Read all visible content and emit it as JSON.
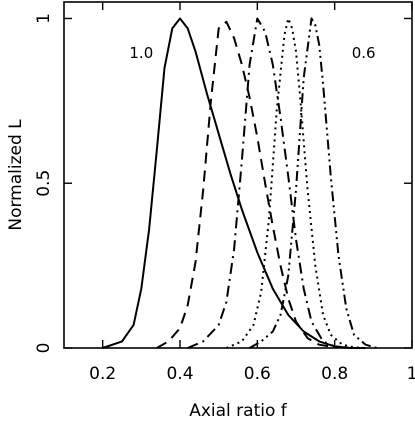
{
  "chart_data": {
    "type": "line",
    "title": "",
    "xlabel": "Axial ratio f",
    "ylabel": "Normalized L",
    "xlim": [
      0.1,
      1.0
    ],
    "ylim": [
      0,
      1.05
    ],
    "xticks": [
      0.2,
      0.4,
      0.6,
      0.8,
      1
    ],
    "xtick_labels": [
      "0.2",
      "0.4",
      "0.6",
      "0.8",
      "1"
    ],
    "yticks": [
      0,
      0.5,
      1
    ],
    "ytick_labels": [
      "0",
      "0.5",
      "1"
    ],
    "grid": false,
    "annotations": [
      {
        "text": "1.0",
        "x": 0.3,
        "y": 0.88
      },
      {
        "text": "0.6",
        "x": 0.875,
        "y": 0.88
      }
    ],
    "series": [
      {
        "style": "solid",
        "x": [
          0.2,
          0.25,
          0.28,
          0.3,
          0.32,
          0.34,
          0.36,
          0.38,
          0.4,
          0.42,
          0.44,
          0.47,
          0.5,
          0.53,
          0.56,
          0.6,
          0.64,
          0.68,
          0.72,
          0.76,
          0.8,
          0.84,
          0.88
        ],
        "y": [
          0.0,
          0.02,
          0.07,
          0.18,
          0.36,
          0.6,
          0.85,
          0.97,
          1.0,
          0.97,
          0.9,
          0.77,
          0.65,
          0.53,
          0.42,
          0.29,
          0.18,
          0.1,
          0.05,
          0.02,
          0.005,
          0.0,
          0.0
        ]
      },
      {
        "style": "dashed",
        "x": [
          0.34,
          0.37,
          0.4,
          0.42,
          0.44,
          0.46,
          0.48,
          0.5,
          0.52,
          0.54,
          0.56,
          0.58,
          0.6,
          0.62,
          0.64,
          0.66,
          0.68,
          0.7,
          0.73,
          0.76,
          0.8,
          0.84
        ],
        "y": [
          0.0,
          0.02,
          0.06,
          0.13,
          0.26,
          0.48,
          0.75,
          0.97,
          0.99,
          0.94,
          0.86,
          0.76,
          0.64,
          0.5,
          0.37,
          0.25,
          0.15,
          0.08,
          0.03,
          0.01,
          0.002,
          0.0
        ]
      },
      {
        "style": "dash-dot",
        "x": [
          0.42,
          0.46,
          0.5,
          0.52,
          0.54,
          0.56,
          0.58,
          0.6,
          0.62,
          0.64,
          0.66,
          0.68,
          0.7,
          0.72,
          0.74,
          0.77,
          0.8,
          0.84
        ],
        "y": [
          0.0,
          0.02,
          0.07,
          0.14,
          0.3,
          0.57,
          0.86,
          1.0,
          0.96,
          0.86,
          0.7,
          0.52,
          0.33,
          0.18,
          0.08,
          0.02,
          0.005,
          0.0
        ]
      },
      {
        "style": "dotted",
        "x": [
          0.52,
          0.56,
          0.59,
          0.61,
          0.63,
          0.65,
          0.67,
          0.68,
          0.69,
          0.7,
          0.71,
          0.73,
          0.75,
          0.77,
          0.79,
          0.82,
          0.85,
          0.88
        ],
        "y": [
          0.0,
          0.02,
          0.07,
          0.17,
          0.39,
          0.72,
          0.95,
          1.0,
          0.97,
          0.9,
          0.77,
          0.48,
          0.25,
          0.1,
          0.04,
          0.01,
          0.002,
          0.0
        ]
      },
      {
        "style": "dash-dot-dot",
        "x": [
          0.58,
          0.61,
          0.64,
          0.66,
          0.68,
          0.7,
          0.72,
          0.74,
          0.75,
          0.76,
          0.77,
          0.79,
          0.81,
          0.83,
          0.85,
          0.88,
          0.91
        ],
        "y": [
          0.0,
          0.02,
          0.05,
          0.1,
          0.22,
          0.48,
          0.82,
          1.0,
          0.98,
          0.92,
          0.8,
          0.52,
          0.28,
          0.12,
          0.04,
          0.01,
          0.0
        ]
      }
    ]
  }
}
